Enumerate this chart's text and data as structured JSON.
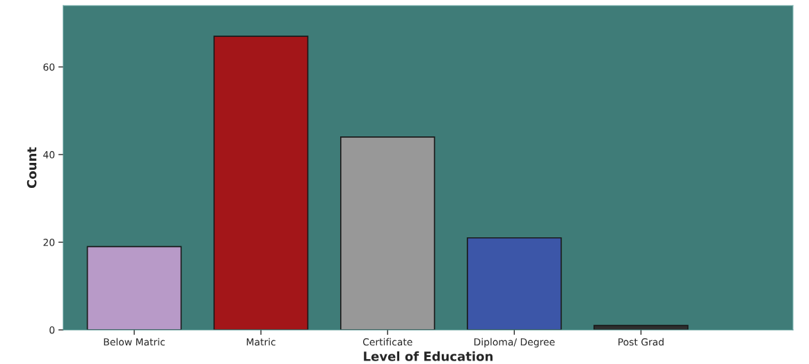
{
  "chart_data": {
    "type": "bar",
    "xlabel": "Level of Education",
    "ylabel": "Count",
    "categories": [
      "Below Matric",
      "Matric",
      "Certificate",
      "Diploma/ Degree",
      "Post Grad"
    ],
    "values": [
      19,
      67,
      44,
      21,
      1
    ],
    "colors": [
      "#b89ac8",
      "#a31619",
      "#989898",
      "#3c56a8",
      "#2e2e2e"
    ],
    "ylim": [
      0,
      74
    ],
    "yticks": [
      0,
      20,
      40,
      60
    ],
    "grid": false
  }
}
